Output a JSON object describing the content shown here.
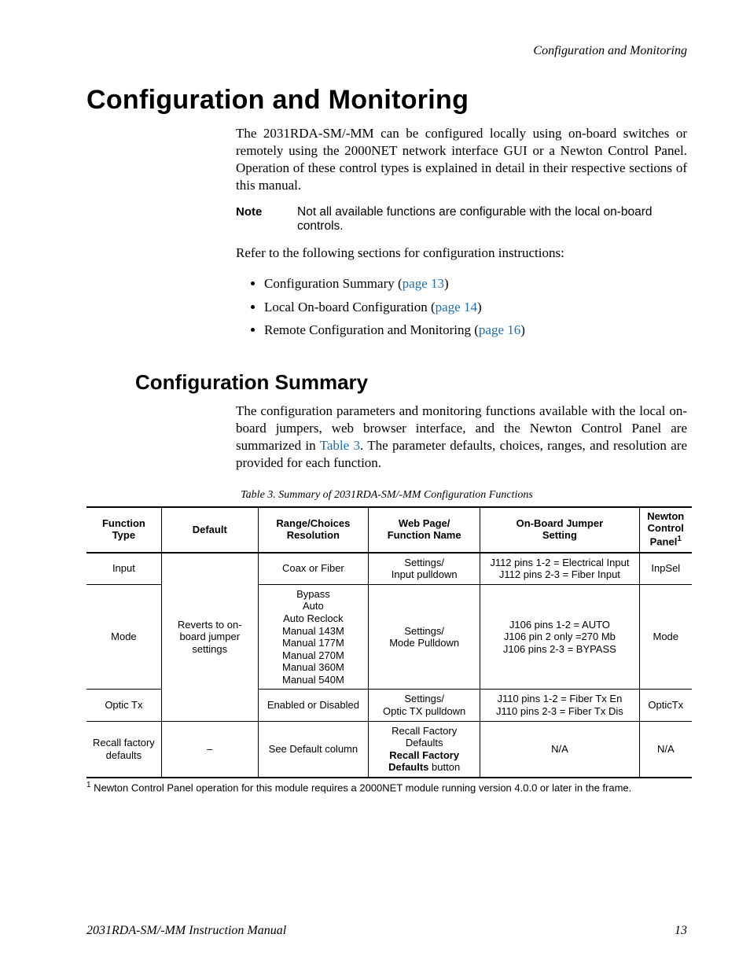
{
  "runningHeader": "Configuration and Monitoring",
  "h1": "Configuration and Monitoring",
  "intro": "The 2031RDA-SM/-MM can be configured locally using on-board switches or remotely using the 2000NET network interface GUI or a Newton Control Panel. Operation of these control types is explained in detail in their respective sections of this manual.",
  "noteLabel": "Note",
  "noteText": "Not all available functions are configurable with the local on-board controls.",
  "refer": "Refer to the following sections for configuration instructions:",
  "bullets": [
    {
      "text": "Configuration Summary (",
      "link": "page 13",
      "suffix": ")"
    },
    {
      "text": "Local On-board Configuration (",
      "link": "page 14",
      "suffix": ")"
    },
    {
      "text": "Remote Configuration and Monitoring (",
      "link": "page 16",
      "suffix": ")"
    }
  ],
  "h2": "Configuration Summary",
  "summaryPara": {
    "pre": "The configuration parameters and monitoring functions available with the local on-board jumpers, web browser interface, and the Newton Control Panel are summarized in ",
    "link": "Table 3",
    "post": ". The parameter defaults, choices, ranges, and resolution are provided for each function."
  },
  "tableCaption": "Table 3.  Summary of 2031RDA-SM/-MM Configuration Functions",
  "table": {
    "headers": {
      "functionType": "Function\nType",
      "default": "Default",
      "range": "Range/Choices\nResolution",
      "web": "Web Page/\nFunction Name",
      "jumper": "On-Board Jumper\nSetting",
      "newton": "Newton\nControl\nPanel",
      "newtonSup": "1"
    },
    "rows": [
      {
        "ft": "Input",
        "range": "Coax or Fiber",
        "web": "Settings/\nInput pulldown",
        "jumper": "J112 pins 1-2 = Electrical Input\nJ112 pins 2-3 = Fiber Input",
        "newton": "InpSel"
      },
      {
        "ft": "Mode",
        "range": "Bypass\nAuto\nAuto Reclock\nManual 143M\nManual 177M\nManual 270M\nManual 360M\nManual 540M",
        "web": "Settings/\nMode Pulldown",
        "jumper": "J106 pins 1-2 = AUTO\nJ106 pin 2 only =270 Mb\nJ106 pins 2-3 = BYPASS",
        "newton": "Mode"
      },
      {
        "ft": "Optic Tx",
        "range": "Enabled or Disabled",
        "web": "Settings/\nOptic TX pulldown",
        "jumper": "J110 pins 1-2 = Fiber Tx En\nJ110 pins 2-3 = Fiber Tx Dis",
        "newton": "OpticTx"
      }
    ],
    "defaultSpan": "Reverts to on-board jumper settings",
    "lastRow": {
      "ft": "Recall factory defaults",
      "def": "–",
      "range": "See Default column",
      "webLine1": "Recall Factory Defaults",
      "webBold": "Recall Factory Defaults",
      "webSuffix": " button",
      "jumper": "N/A",
      "newton": "N/A"
    }
  },
  "footnote": {
    "sup": "1",
    "text": " Newton Control Panel operation for this module requires a 2000NET module running version 4.0.0 or later in the frame."
  },
  "footerLeft": "2031RDA-SM/-MM Instruction Manual",
  "footerRight": "13"
}
